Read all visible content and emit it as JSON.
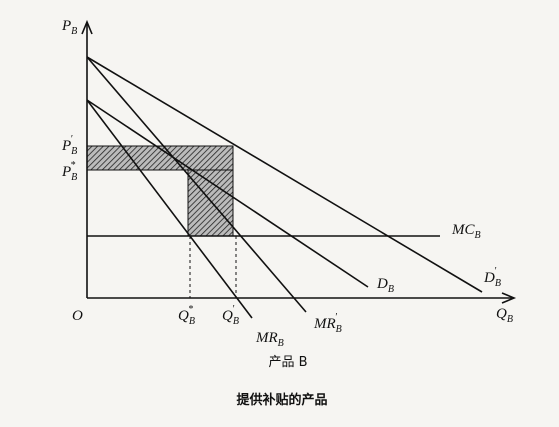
{
  "axis_labels": {
    "y": {
      "base": "P",
      "sub": "B"
    },
    "x": {
      "base": "Q",
      "sub": "B"
    },
    "origin": "O"
  },
  "price_labels": [
    {
      "base": "P",
      "sub": "B",
      "sup": "′"
    },
    {
      "base": "P",
      "sub": "B",
      "sup": "*"
    }
  ],
  "quantity_labels": [
    {
      "base": "Q",
      "sub": "B",
      "sup": "*"
    },
    {
      "base": "Q",
      "sub": "B",
      "sup": "′"
    }
  ],
  "curves": [
    {
      "base": "MC",
      "sub": "B"
    },
    {
      "base": "D",
      "sub": "B"
    },
    {
      "base": "D",
      "sub": "B",
      "sup": "′"
    },
    {
      "base": "MR",
      "sub": "B"
    },
    {
      "base": "MR",
      "sub": "B",
      "sup": "′"
    }
  ],
  "caption": "产品 B",
  "title": "提供补贴的产品"
}
